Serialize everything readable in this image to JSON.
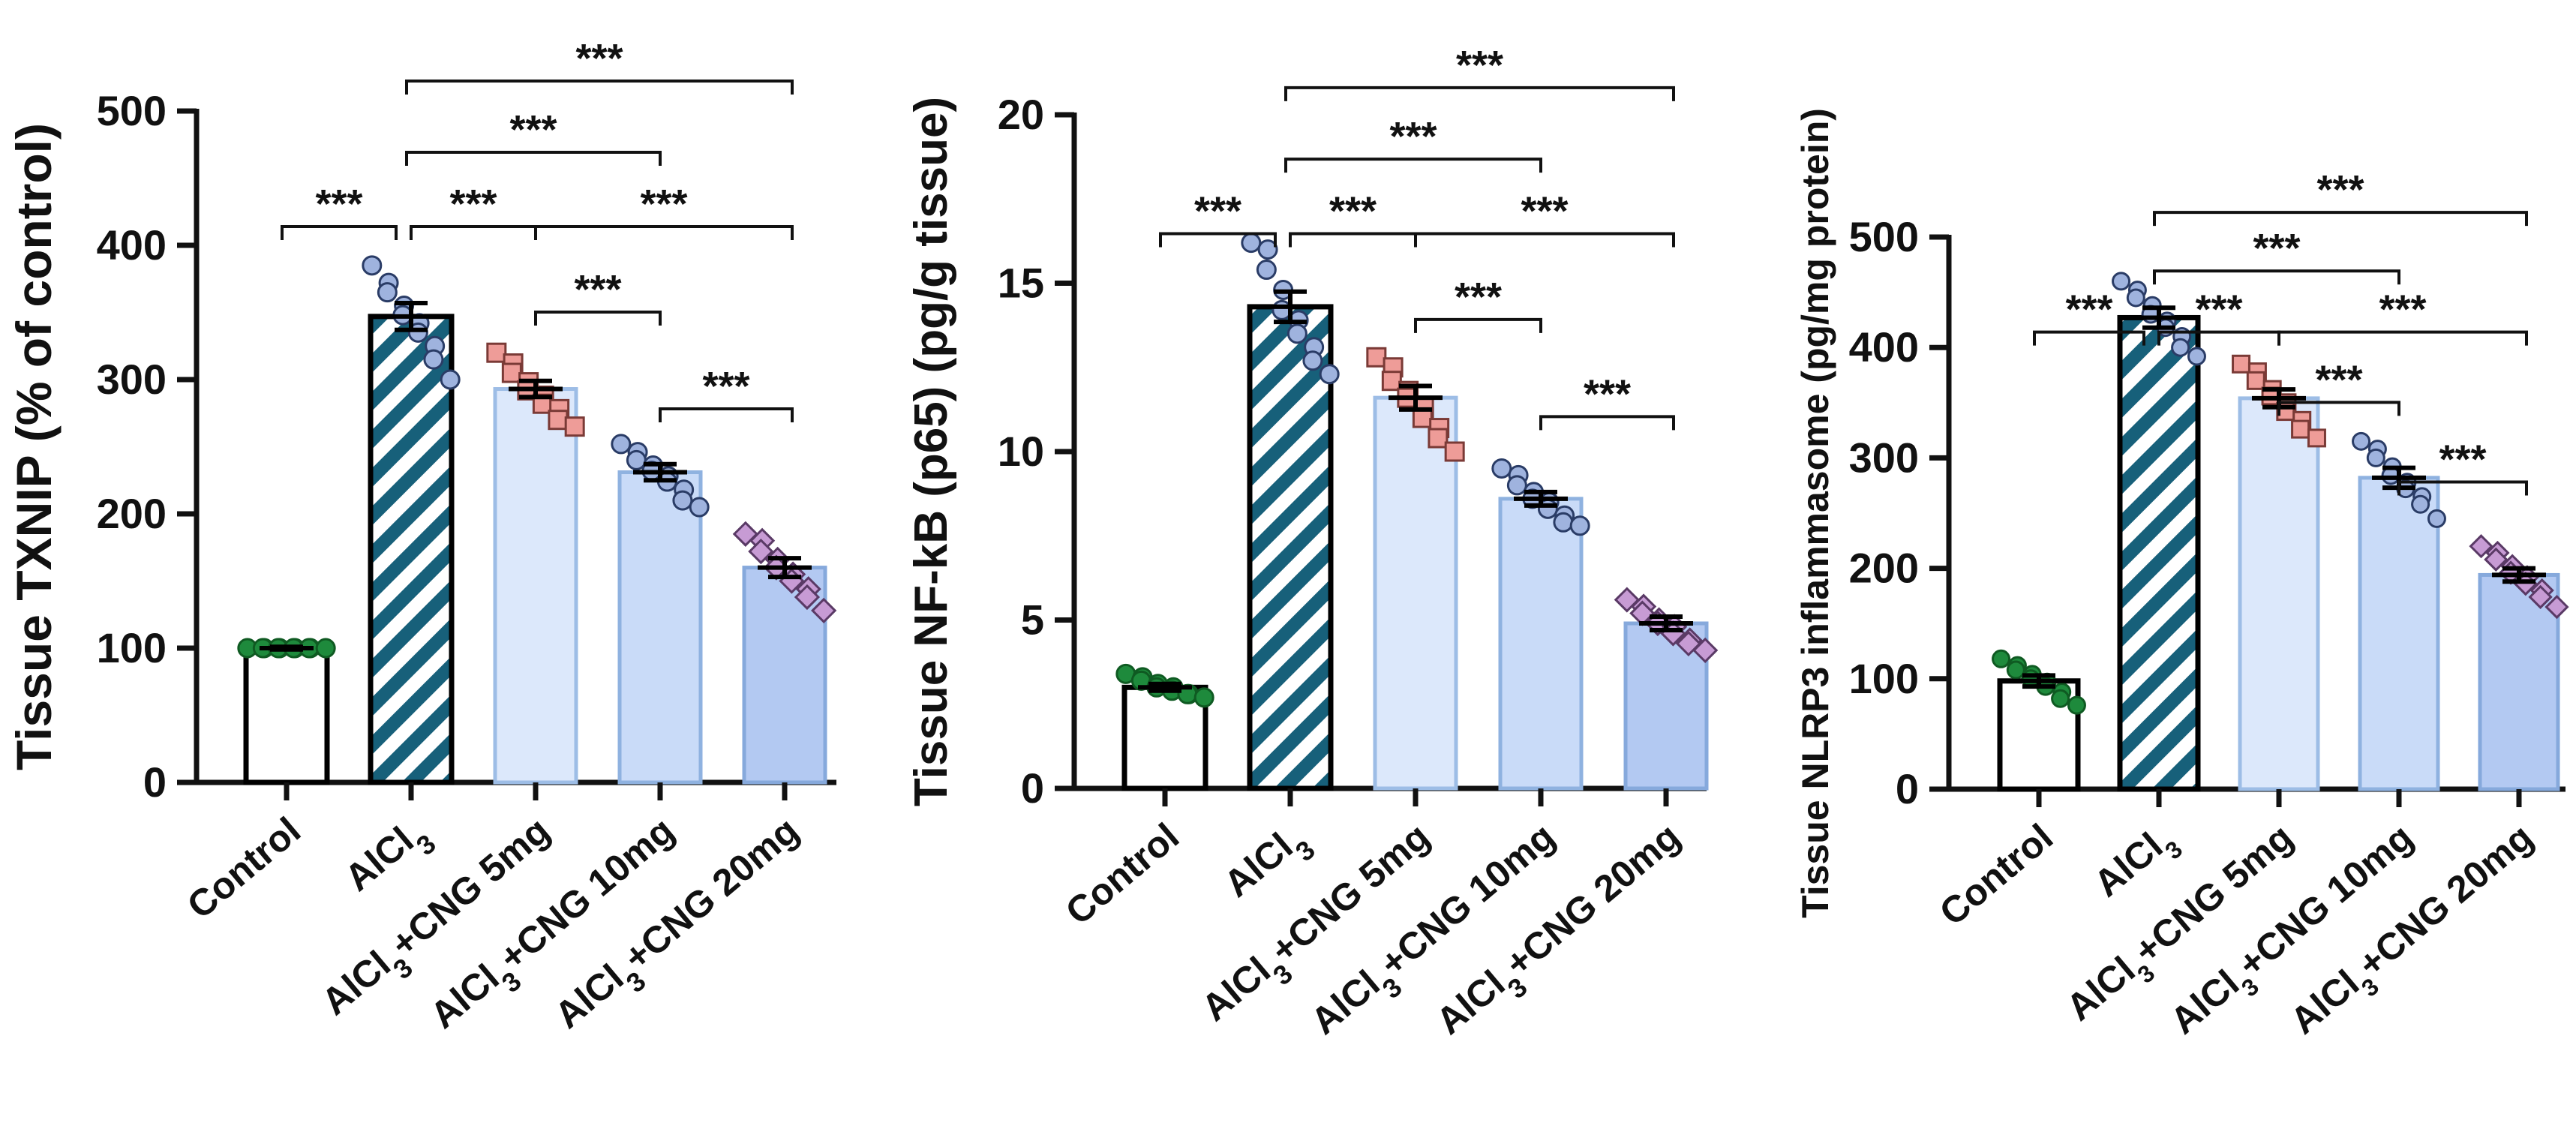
{
  "figure": {
    "description_free": true
  },
  "chart_data": [
    {
      "type": "bar",
      "ylabel": "Tissue TXNIP (% of control)",
      "ylim": [
        0,
        500
      ],
      "yticks": [
        0,
        100,
        200,
        300,
        400,
        500
      ],
      "grid": false,
      "categories": [
        {
          "prefix": "Control",
          "sub": "",
          "suffix": ""
        },
        {
          "prefix": "AlCl",
          "sub": "3",
          "suffix": ""
        },
        {
          "prefix": "AlCl",
          "sub": "3",
          "suffix": "+CNG 5mg"
        },
        {
          "prefix": "AlCl",
          "sub": "3",
          "suffix": "+CNG 10mg"
        },
        {
          "prefix": "AlCl",
          "sub": "3",
          "suffix": "+CNG 20mg"
        }
      ],
      "values": [
        100,
        347,
        293,
        231,
        160
      ],
      "sem": [
        1,
        10,
        6,
        6,
        7
      ],
      "points": [
        [
          100,
          100,
          100,
          100,
          100,
          100,
          100,
          100,
          100,
          100
        ],
        [
          385,
          372,
          365,
          355,
          348,
          342,
          335,
          325,
          315,
          300
        ],
        [
          320,
          312,
          305,
          298,
          292,
          288,
          282,
          278,
          270,
          265
        ],
        [
          252,
          246,
          240,
          236,
          232,
          228,
          224,
          218,
          210,
          205
        ],
        [
          185,
          180,
          172,
          166,
          160,
          155,
          150,
          144,
          138,
          128
        ]
      ],
      "significance": [
        {
          "from": 0,
          "to": 1,
          "label": "***",
          "level": 0
        },
        {
          "from": 1,
          "to": 2,
          "label": "***",
          "level": 0
        },
        {
          "from": 2,
          "to": 4,
          "label": "***",
          "level": 0
        },
        {
          "from": 2,
          "to": 3,
          "label": "***",
          "level": 1
        },
        {
          "from": 3,
          "to": 4,
          "label": "***",
          "level": 2
        },
        {
          "from": 1,
          "to": 3,
          "label": "***",
          "level": 3
        },
        {
          "from": 1,
          "to": 4,
          "label": "***",
          "level": 4
        }
      ]
    },
    {
      "type": "bar",
      "ylabel": "Tissue NF-kB (p65) (pg/g tissue)",
      "ylim": [
        0,
        20
      ],
      "yticks": [
        0,
        5,
        10,
        15,
        20
      ],
      "grid": false,
      "categories": [
        {
          "prefix": "Control",
          "sub": "",
          "suffix": ""
        },
        {
          "prefix": "AlCl",
          "sub": "3",
          "suffix": ""
        },
        {
          "prefix": "AlCl",
          "sub": "3",
          "suffix": "+CNG 5mg"
        },
        {
          "prefix": "AlCl",
          "sub": "3",
          "suffix": "+CNG 10mg"
        },
        {
          "prefix": "AlCl",
          "sub": "3",
          "suffix": "+CNG 20mg"
        }
      ],
      "values": [
        3.0,
        14.3,
        11.6,
        8.6,
        4.9
      ],
      "sem": [
        0.1,
        0.45,
        0.35,
        0.2,
        0.2
      ],
      "points": [
        [
          3.4,
          3.3,
          3.2,
          3.1,
          3.0,
          3.0,
          2.9,
          2.8,
          2.8,
          2.7
        ],
        [
          16.2,
          16.0,
          15.4,
          14.8,
          14.2,
          13.9,
          13.5,
          13.1,
          12.7,
          12.3
        ],
        [
          12.8,
          12.5,
          12.1,
          11.8,
          11.6,
          11.3,
          11.0,
          10.7,
          10.4,
          10.0
        ],
        [
          9.5,
          9.3,
          9.0,
          8.8,
          8.6,
          8.5,
          8.3,
          8.1,
          7.9,
          7.8
        ],
        [
          5.6,
          5.4,
          5.2,
          5.0,
          4.9,
          4.8,
          4.6,
          4.4,
          4.3,
          4.1
        ]
      ],
      "significance": [
        {
          "from": 0,
          "to": 1,
          "label": "***",
          "level": 0
        },
        {
          "from": 1,
          "to": 2,
          "label": "***",
          "level": 0
        },
        {
          "from": 2,
          "to": 4,
          "label": "***",
          "level": 0
        },
        {
          "from": 2,
          "to": 3,
          "label": "***",
          "level": 1
        },
        {
          "from": 3,
          "to": 4,
          "label": "***",
          "level": 2
        },
        {
          "from": 1,
          "to": 3,
          "label": "***",
          "level": 3
        },
        {
          "from": 1,
          "to": 4,
          "label": "***",
          "level": 4
        }
      ]
    },
    {
      "type": "bar",
      "ylabel": "Tissue NLRP3 inflammasome (pg/mg protein)",
      "ylim": [
        0,
        500
      ],
      "yticks": [
        0,
        100,
        200,
        300,
        400,
        500
      ],
      "grid": false,
      "categories": [
        {
          "prefix": "Control",
          "sub": "",
          "suffix": ""
        },
        {
          "prefix": "AlCl",
          "sub": "3",
          "suffix": ""
        },
        {
          "prefix": "AlCl",
          "sub": "3",
          "suffix": "+CNG 5mg"
        },
        {
          "prefix": "AlCl",
          "sub": "3",
          "suffix": "+CNG 10mg"
        },
        {
          "prefix": "AlCl",
          "sub": "3",
          "suffix": "+CNG 20mg"
        }
      ],
      "values": [
        98,
        427,
        354,
        282,
        194
      ],
      "sem": [
        5,
        9,
        8,
        9,
        6
      ],
      "points": [
        [
          118,
          112,
          108,
          104,
          100,
          97,
          93,
          88,
          82,
          76
        ],
        [
          460,
          452,
          445,
          438,
          430,
          424,
          418,
          410,
          400,
          392
        ],
        [
          385,
          378,
          370,
          362,
          356,
          350,
          342,
          334,
          326,
          318
        ],
        [
          315,
          308,
          300,
          292,
          284,
          278,
          272,
          265,
          258,
          245
        ],
        [
          220,
          214,
          208,
          202,
          196,
          192,
          186,
          180,
          174,
          165
        ]
      ],
      "significance": [
        {
          "from": 0,
          "to": 1,
          "label": "***",
          "level": 0
        },
        {
          "from": 1,
          "to": 2,
          "label": "***",
          "level": 0
        },
        {
          "from": 2,
          "to": 4,
          "label": "***",
          "level": 0
        },
        {
          "from": 2,
          "to": 3,
          "label": "***",
          "level": 1
        },
        {
          "from": 3,
          "to": 4,
          "label": "***",
          "level": 2
        },
        {
          "from": 1,
          "to": 3,
          "label": "***",
          "level": 3
        },
        {
          "from": 1,
          "to": 4,
          "label": "***",
          "level": 4
        }
      ]
    }
  ],
  "style": {
    "bar_fills": [
      "#ffffff",
      "stripe",
      "#dce8fb",
      "#c9dbf8",
      "#b3c9f2"
    ],
    "bar_strokes": [
      "#000000",
      "#000000",
      "#9dbde6",
      "#8fb2e0",
      "#86a9dc"
    ],
    "stripe_colors": [
      "#17607a",
      "#ffffff"
    ],
    "point_fills": [
      "#1e8a3c",
      "#9fb3de",
      "#ee9c98",
      "#9fb3de",
      "#c79bd4"
    ],
    "point_strokes": [
      "#0f5a22",
      "#2a3c66",
      "#7a3a36",
      "#2a3c66",
      "#5a3a66"
    ],
    "point_shapes": [
      "circle",
      "circle",
      "square",
      "circle",
      "diamond"
    ]
  }
}
